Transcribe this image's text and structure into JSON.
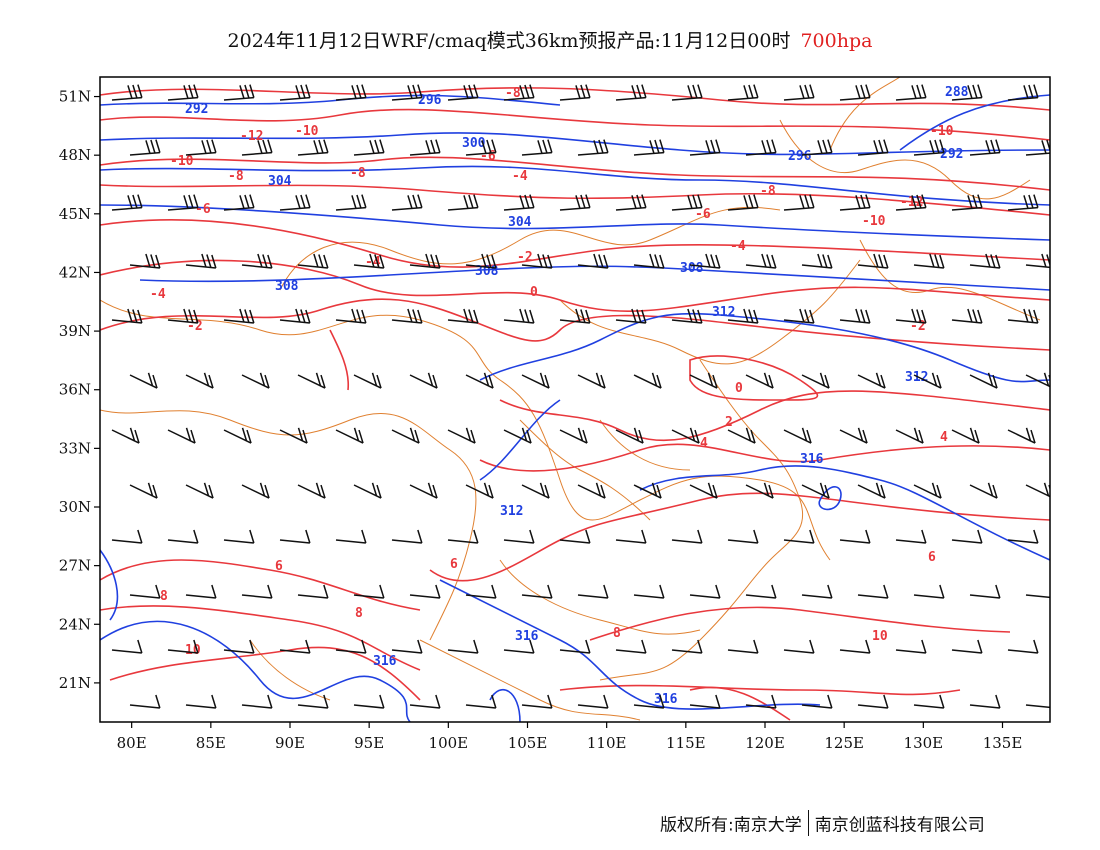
{
  "title": {
    "main": "2024年11月12日WRF/cmaq模式36km预报产品:11月12日00时",
    "level": "700hpa"
  },
  "colors": {
    "temperature": "#e8383d",
    "geopotential": "#2040e0",
    "border": "#e08030",
    "wind": "#111111",
    "level_title": "#e02020"
  },
  "map": {
    "lon_range": [
      78,
      138
    ],
    "lat_range": [
      19,
      52
    ],
    "lon_ticks": [
      "80E",
      "85E",
      "90E",
      "95E",
      "100E",
      "105E",
      "110E",
      "115E",
      "120E",
      "125E",
      "130E",
      "135E"
    ],
    "lat_ticks": [
      "51N",
      "48N",
      "45N",
      "42N",
      "39N",
      "36N",
      "33N",
      "30N",
      "27N",
      "24N",
      "21N"
    ]
  },
  "contours": {
    "geopotential_labels": [
      "292",
      "296",
      "300",
      "304",
      "308",
      "312",
      "316",
      "288"
    ],
    "temperature_labels": [
      "-12",
      "-10",
      "-8",
      "-6",
      "-4",
      "-2",
      "0",
      "2",
      "4",
      "6",
      "8",
      "10"
    ]
  },
  "credit": {
    "left": "版权所有:南京大学",
    "right": "南京创蓝科技有限公司"
  }
}
